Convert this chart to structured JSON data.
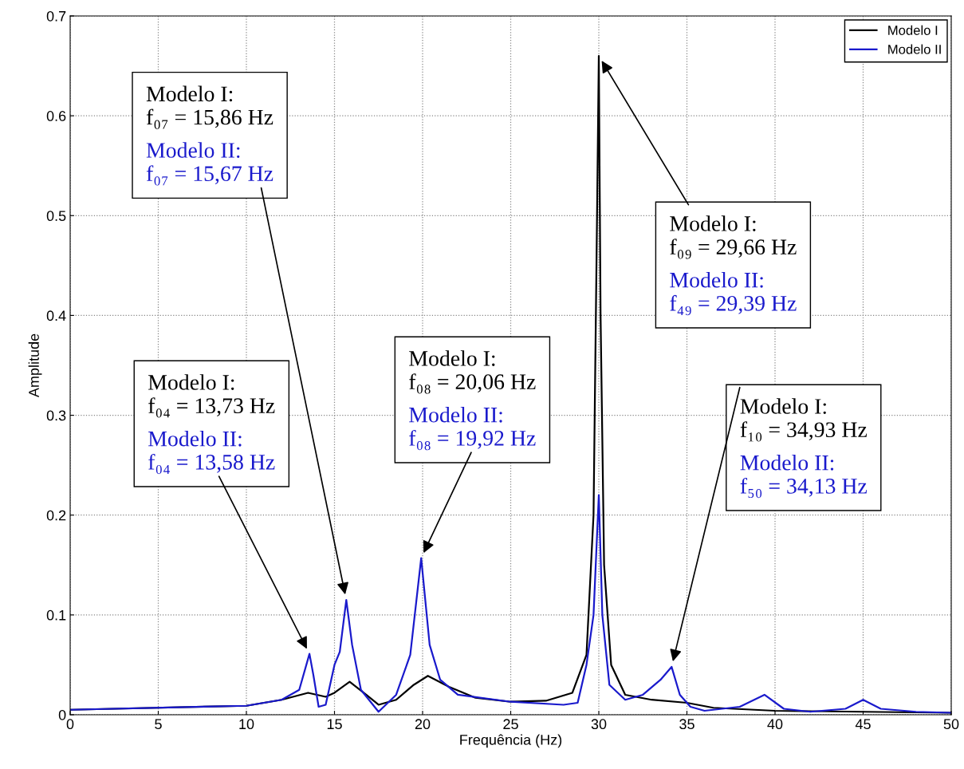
{
  "chart_data": {
    "type": "line",
    "xlabel": "Frequência (Hz)",
    "ylabel": "Amplitude",
    "xlim": [
      0,
      50
    ],
    "xticks": [
      0,
      5,
      10,
      15,
      20,
      25,
      30,
      35,
      40,
      45,
      50
    ],
    "ylim": [
      0,
      0.7
    ],
    "yticks": [
      0,
      0.1,
      0.2,
      0.3,
      0.4,
      0.5,
      0.6,
      0.7
    ],
    "grid": true,
    "legend": "top right",
    "line_style": "solid",
    "marker": "none",
    "series": [
      {
        "name": "Modelo I",
        "color": "#000000",
        "x": [
          0,
          10,
          12,
          13.5,
          14.5,
          15.0,
          15.86,
          16.8,
          17.5,
          18.5,
          19.5,
          20.3,
          21.5,
          23,
          25,
          27,
          28.5,
          29.3,
          29.7,
          29.9,
          30.0,
          30.1,
          30.3,
          30.7,
          31.5,
          33,
          35,
          36.5,
          40,
          45,
          50
        ],
        "values": [
          0.005,
          0.009,
          0.015,
          0.022,
          0.018,
          0.022,
          0.033,
          0.02,
          0.01,
          0.015,
          0.03,
          0.039,
          0.028,
          0.017,
          0.013,
          0.014,
          0.022,
          0.06,
          0.2,
          0.5,
          0.66,
          0.4,
          0.15,
          0.05,
          0.02,
          0.015,
          0.012,
          0.007,
          0.004,
          0.003,
          0.002
        ]
      },
      {
        "name": "Modelo II",
        "color": "#1a1acc",
        "x": [
          0,
          10,
          12,
          13,
          13.58,
          13.8,
          14.1,
          14.5,
          15.0,
          15.3,
          15.67,
          16.0,
          16.5,
          17.5,
          18.5,
          19.3,
          19.92,
          20.4,
          21,
          22,
          25,
          28,
          28.8,
          29.3,
          29.7,
          30,
          30.2,
          30.6,
          31.5,
          32.5,
          33.5,
          34.13,
          34.6,
          35.2,
          36,
          38,
          39.4,
          40.5,
          42,
          44,
          45,
          46,
          48,
          50
        ],
        "values": [
          0.005,
          0.009,
          0.015,
          0.025,
          0.061,
          0.04,
          0.008,
          0.01,
          0.05,
          0.063,
          0.115,
          0.07,
          0.025,
          0.003,
          0.02,
          0.06,
          0.157,
          0.07,
          0.035,
          0.02,
          0.013,
          0.01,
          0.012,
          0.05,
          0.1,
          0.22,
          0.1,
          0.03,
          0.015,
          0.02,
          0.035,
          0.048,
          0.02,
          0.008,
          0.004,
          0.008,
          0.02,
          0.006,
          0.003,
          0.006,
          0.015,
          0.006,
          0.003,
          0.002
        ]
      }
    ],
    "annotations": [
      "Modelo I:\nf₀₄ = 13,73 Hz",
      {
        "text": "Modelo II:\nf₀₄ = 13,58 Hz",
        "x": 13.58,
        "y": 0.061
      },
      "Modelo I:\nf₀₇ = 15,86 Hz",
      {
        "text": "Modelo II:\nf₀₇ = 15,67 Hz",
        "x": 15.67,
        "y": 0.115
      },
      "Modelo I:\nf₀₈ = 20,06 Hz",
      {
        "text": "Modelo II:\nf₀₈ = 19,92 Hz",
        "x": 19.92,
        "y": 0.157
      },
      {
        "text": "Modelo I:\nf₀₉ = 29,66 Hz",
        "x": 30.0,
        "y": 0.66
      },
      "Modelo II:\nf₄₉ = 29,39 Hz",
      {
        "text": "Modelo I:\nf₁₀ = 34,93 Hz",
        "x": 34.13,
        "y": 0.048
      },
      "Modelo II:\nf₅₀ = 34,13 Hz"
    ]
  }
}
